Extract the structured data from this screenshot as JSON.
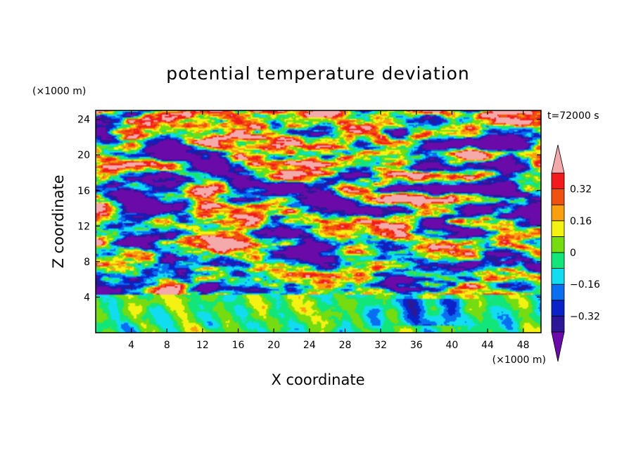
{
  "chart_data": {
    "type": "heatmap",
    "title": "potential temperature deviation",
    "xlabel": "X coordinate",
    "ylabel": "Z coordinate",
    "x_unit": "(×1000 m)",
    "y_unit": "(×1000 m)",
    "time_label": "t=72000 s",
    "xlim": [
      0,
      50
    ],
    "ylim": [
      0,
      25
    ],
    "x_ticks": [
      "4",
      "8",
      "12",
      "16",
      "20",
      "24",
      "28",
      "32",
      "36",
      "40",
      "44",
      "48"
    ],
    "y_ticks": [
      "4",
      "8",
      "12",
      "16",
      "20",
      "24"
    ],
    "colorbar": {
      "labels": [
        "0.32",
        "0.16",
        "0",
        "−0.16",
        "−0.32"
      ],
      "label_values": [
        0.32,
        0.16,
        0,
        -0.16,
        -0.32
      ],
      "levels": [
        -0.4,
        -0.32,
        -0.24,
        -0.16,
        -0.08,
        0,
        0.08,
        0.16,
        0.24,
        0.32,
        0.4
      ],
      "colors": [
        "#6a0aa8",
        "#2c1896",
        "#0a22c8",
        "#0a6ef0",
        "#12dcf0",
        "#12e67a",
        "#74dc10",
        "#f4f212",
        "#f8a010",
        "#f05010",
        "#f21a1a",
        "#f4aaaa"
      ],
      "extend": "both"
    }
  }
}
